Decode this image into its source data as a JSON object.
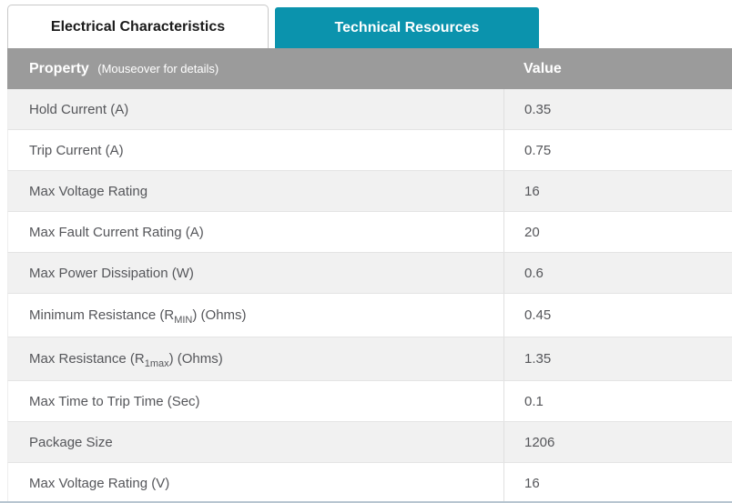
{
  "tabs": [
    {
      "label": "Electrical Characteristics",
      "active": true
    },
    {
      "label": "Technical Resources",
      "active": false
    }
  ],
  "table": {
    "header": {
      "property_label": "Property",
      "property_hint": "(Mouseover for details)",
      "value_label": "Value"
    },
    "rows": [
      {
        "property_pre": "Hold Current (A)",
        "property_sub": "",
        "property_post": "",
        "value": "0.35"
      },
      {
        "property_pre": "Trip Current (A)",
        "property_sub": "",
        "property_post": "",
        "value": "0.75"
      },
      {
        "property_pre": "Max Voltage Rating",
        "property_sub": "",
        "property_post": "",
        "value": "16"
      },
      {
        "property_pre": "Max Fault Current Rating (A)",
        "property_sub": "",
        "property_post": "",
        "value": "20"
      },
      {
        "property_pre": "Max Power Dissipation (W)",
        "property_sub": "",
        "property_post": "",
        "value": "0.6"
      },
      {
        "property_pre": "Minimum Resistance (R",
        "property_sub": "MIN",
        "property_post": ") (Ohms)",
        "value": "0.45"
      },
      {
        "property_pre": "Max Resistance (R",
        "property_sub": "1max",
        "property_post": ") (Ohms)",
        "value": "1.35"
      },
      {
        "property_pre": "Max Time to Trip Time (Sec)",
        "property_sub": "",
        "property_post": "",
        "value": "0.1"
      },
      {
        "property_pre": "Package Size",
        "property_sub": "",
        "property_post": "",
        "value": "1206"
      },
      {
        "property_pre": "Max Voltage Rating (V)",
        "property_sub": "",
        "property_post": "",
        "value": "16"
      }
    ]
  },
  "colors": {
    "tab_active_bg": "#ffffff",
    "tab_active_text": "#1b1b1b",
    "tab_alt_bg": "#0b93ad",
    "tab_alt_text": "#ffffff",
    "header_bg": "#9b9b9b",
    "header_text": "#ffffff",
    "row_shaded_bg": "#f1f1f1",
    "row_text": "#55565a",
    "row_border": "#e4e4e4",
    "bottom_line": "#b7c5d0"
  }
}
